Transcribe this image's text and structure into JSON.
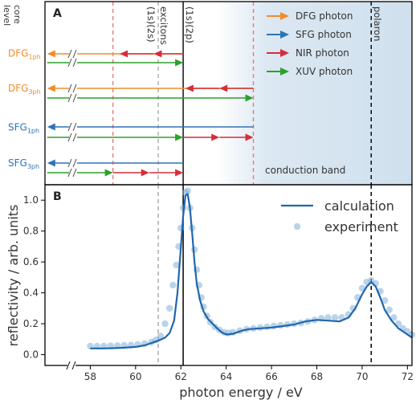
{
  "chart_data": [
    {
      "panel": "A",
      "type": "diagram",
      "left_labels": [
        "core",
        "level"
      ],
      "x_range": [
        56,
        72.2
      ],
      "vertical_lines": [
        {
          "x": 59.0,
          "style": "dashed",
          "color": "#e57a7a"
        },
        {
          "x": 61.0,
          "style": "dashed",
          "color": "#aaaaaa",
          "label": "excitons"
        },
        {
          "x": 62.1,
          "style": "solid",
          "color": "#000000"
        },
        {
          "x": 65.2,
          "style": "dashed",
          "color": "#e57a7a"
        },
        {
          "x": 70.4,
          "style": "dashed",
          "color": "#000000",
          "label": "polaron"
        }
      ],
      "state_labels": [
        "(1s)(2s)",
        "(1s)(2p)"
      ],
      "band_label": "conduction band",
      "legend": [
        {
          "name": "DFG photon",
          "color": "#f28c28"
        },
        {
          "name": "SFG photon",
          "color": "#2f74b5"
        },
        {
          "name": "NIR photon",
          "color": "#d62d3a"
        },
        {
          "name": "XUV photon",
          "color": "#2ca02c"
        }
      ],
      "groups": [
        {
          "label": "DFG",
          "sub": "1ph",
          "label_color": "#f28c28",
          "rows": [
            {
              "segments": [
                {
                  "from": 62.1,
                  "to": 56.1,
                  "color": "#f28c28"
                },
                {
                  "from": 62.1,
                  "to": 60.8,
                  "color": "#d62d3a"
                },
                {
                  "from": 60.8,
                  "to": 59.3,
                  "color": "#d62d3a"
                }
              ]
            },
            {
              "segments": [
                {
                  "from": 56.1,
                  "to": 62.1,
                  "color": "#2ca02c"
                }
              ]
            }
          ]
        },
        {
          "label": "DFG",
          "sub": "3ph",
          "label_color": "#f28c28",
          "rows": [
            {
              "segments": [
                {
                  "from": 65.2,
                  "to": 56.1,
                  "color": "#f28c28"
                },
                {
                  "from": 65.2,
                  "to": 63.7,
                  "color": "#d62d3a"
                },
                {
                  "from": 63.7,
                  "to": 62.2,
                  "color": "#d62d3a"
                }
              ]
            },
            {
              "segments": [
                {
                  "from": 56.1,
                  "to": 65.2,
                  "color": "#2ca02c"
                }
              ]
            }
          ]
        },
        {
          "label": "SFG",
          "sub": "1ph",
          "label_color": "#2f74b5",
          "rows": [
            {
              "segments": [
                {
                  "from": 65.2,
                  "to": 56.1,
                  "color": "#2f74b5"
                }
              ]
            },
            {
              "segments": [
                {
                  "from": 56.1,
                  "to": 62.1,
                  "color": "#2ca02c"
                },
                {
                  "from": 62.1,
                  "to": 63.7,
                  "color": "#d62d3a"
                },
                {
                  "from": 63.7,
                  "to": 65.2,
                  "color": "#d62d3a"
                }
              ]
            }
          ]
        },
        {
          "label": "SFG",
          "sub": "3ph",
          "label_color": "#2f74b5",
          "rows": [
            {
              "segments": [
                {
                  "from": 62.1,
                  "to": 56.1,
                  "color": "#2f74b5"
                }
              ]
            },
            {
              "segments": [
                {
                  "from": 56.1,
                  "to": 59.0,
                  "color": "#2ca02c"
                },
                {
                  "from": 59.0,
                  "to": 60.6,
                  "color": "#d62d3a"
                },
                {
                  "from": 60.6,
                  "to": 62.1,
                  "color": "#d62d3a"
                }
              ]
            }
          ]
        }
      ]
    },
    {
      "panel": "B",
      "type": "line",
      "xlabel": "photon energy / eV",
      "ylabel": "reflectivity / arb. units",
      "xlim": [
        56,
        72.2
      ],
      "ylim": [
        -0.07,
        1.1
      ],
      "xticks": [
        58,
        60,
        62,
        64,
        66,
        68,
        70,
        72
      ],
      "yticks": [
        0.0,
        0.2,
        0.4,
        0.6,
        0.8,
        1.0
      ],
      "vertical_lines": [
        {
          "x": 61.0,
          "style": "dashed",
          "color": "#aaaaaa"
        },
        {
          "x": 62.1,
          "style": "solid",
          "color": "#000000"
        },
        {
          "x": 70.4,
          "style": "dashed",
          "color": "#000000"
        }
      ],
      "series": [
        {
          "name": "calculation",
          "style": "line",
          "color": "#2166ac",
          "x": [
            58.0,
            58.5,
            59.0,
            59.5,
            60.0,
            60.4,
            60.7,
            61.0,
            61.3,
            61.5,
            61.7,
            61.85,
            62.0,
            62.1,
            62.2,
            62.3,
            62.4,
            62.5,
            62.6,
            62.7,
            62.85,
            63.0,
            63.2,
            63.4,
            63.6,
            63.8,
            64.0,
            64.3,
            64.7,
            65.0,
            65.5,
            66.0,
            66.5,
            67.0,
            67.5,
            68.0,
            68.5,
            69.0,
            69.4,
            69.7,
            70.0,
            70.2,
            70.4,
            70.6,
            70.8,
            71.0,
            71.3,
            71.6,
            72.0,
            72.2
          ],
          "y": [
            0.04,
            0.04,
            0.042,
            0.045,
            0.05,
            0.06,
            0.075,
            0.09,
            0.11,
            0.14,
            0.22,
            0.4,
            0.7,
            0.9,
            1.03,
            1.04,
            0.95,
            0.78,
            0.6,
            0.46,
            0.35,
            0.28,
            0.23,
            0.2,
            0.17,
            0.145,
            0.13,
            0.135,
            0.155,
            0.165,
            0.17,
            0.175,
            0.185,
            0.195,
            0.215,
            0.225,
            0.22,
            0.215,
            0.24,
            0.3,
            0.39,
            0.44,
            0.47,
            0.44,
            0.37,
            0.29,
            0.22,
            0.17,
            0.13,
            0.11
          ]
        },
        {
          "name": "experiment",
          "style": "markers",
          "color": "#7fb0d9",
          "x": [
            58.0,
            58.3,
            58.6,
            58.9,
            59.2,
            59.5,
            59.8,
            60.1,
            60.4,
            60.7,
            60.9,
            61.1,
            61.3,
            61.5,
            61.65,
            61.8,
            61.9,
            62.0,
            62.1,
            62.2,
            62.3,
            62.4,
            62.5,
            62.6,
            62.7,
            62.8,
            62.9,
            63.0,
            63.15,
            63.3,
            63.5,
            63.7,
            63.9,
            64.1,
            64.3,
            64.6,
            64.9,
            65.2,
            65.5,
            65.8,
            66.1,
            66.4,
            66.7,
            67.0,
            67.3,
            67.6,
            67.9,
            68.2,
            68.5,
            68.8,
            69.1,
            69.4,
            69.6,
            69.8,
            70.0,
            70.2,
            70.4,
            70.6,
            70.8,
            71.0,
            71.2,
            71.4,
            71.6,
            71.8,
            72.0,
            72.2
          ],
          "y": [
            0.055,
            0.055,
            0.056,
            0.057,
            0.058,
            0.06,
            0.062,
            0.066,
            0.072,
            0.082,
            0.095,
            0.12,
            0.2,
            0.3,
            0.45,
            0.58,
            0.7,
            0.82,
            0.95,
            1.05,
            1.06,
            0.95,
            0.82,
            0.68,
            0.55,
            0.45,
            0.37,
            0.31,
            0.25,
            0.21,
            0.18,
            0.16,
            0.145,
            0.14,
            0.145,
            0.155,
            0.165,
            0.17,
            0.175,
            0.18,
            0.185,
            0.19,
            0.195,
            0.2,
            0.205,
            0.215,
            0.225,
            0.235,
            0.24,
            0.24,
            0.24,
            0.26,
            0.3,
            0.37,
            0.43,
            0.47,
            0.48,
            0.46,
            0.41,
            0.35,
            0.29,
            0.24,
            0.2,
            0.17,
            0.15,
            0.13
          ]
        }
      ]
    }
  ]
}
